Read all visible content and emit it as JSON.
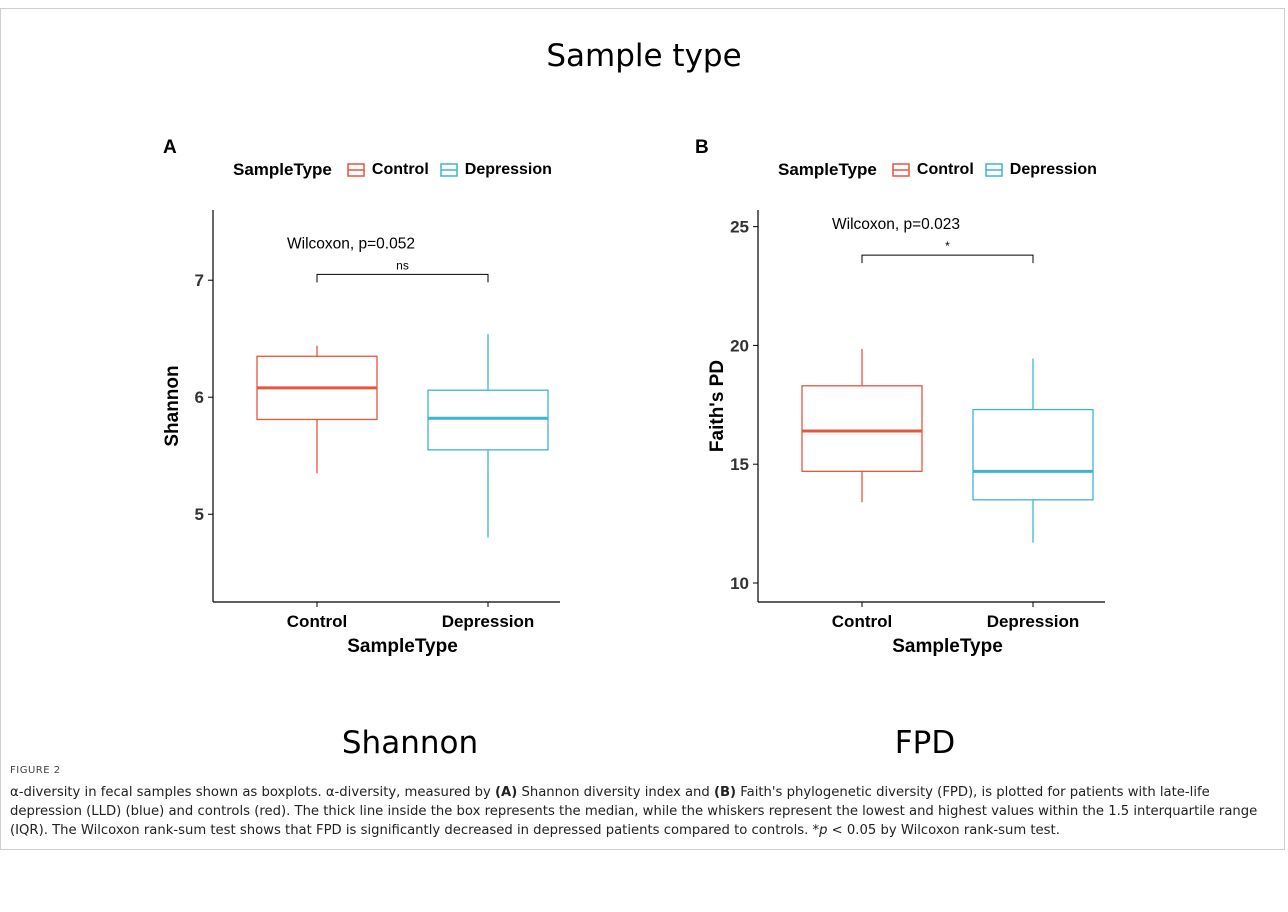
{
  "suptitle": "Sample type",
  "caption": {
    "label": "FIGURE 2",
    "parts": [
      {
        "t": "α-diversity in fecal samples shown as boxplots. α-diversity, measured by ",
        "b": false
      },
      {
        "t": "(A)",
        "b": true
      },
      {
        "t": " Shannon diversity index and ",
        "b": false
      },
      {
        "t": "(B)",
        "b": true
      },
      {
        "t": " Faith's phylogenetic diversity (FPD), is plotted for patients with late-life depression (LLD) (blue) and controls (red). The thick line inside the box represents the median, while the whiskers represent the lowest and highest values within the 1.5 interquartile range (IQR). The Wilcoxon rank-sum test shows that FPD is significantly decreased in depressed patients compared to controls. *",
        "b": false
      },
      {
        "t": "p",
        "i": true
      },
      {
        "t": " < 0.05 by Wilcoxon rank-sum test.",
        "b": false
      }
    ]
  },
  "colors": {
    "control": "#E8553F",
    "depression": "#3DB5CF"
  },
  "chart_data": [
    {
      "type": "box",
      "panel_label": "A",
      "legend_title": "SampleType",
      "legend_position": "top",
      "subtitle": "Shannon",
      "xlabel": "SampleType",
      "ylabel": "Shannon",
      "categories": [
        "Control",
        "Depression"
      ],
      "ylim": [
        4.25,
        7.6
      ],
      "yticks": [
        5,
        6,
        7
      ],
      "boxes": [
        {
          "name": "Control",
          "min": 5.35,
          "q1": 5.81,
          "median": 6.08,
          "q3": 6.35,
          "max": 6.44
        },
        {
          "name": "Depression",
          "min": 4.8,
          "q1": 5.55,
          "median": 5.82,
          "q3": 6.06,
          "max": 6.54
        }
      ],
      "annotation": {
        "test": "Wilcoxon, p=0.052",
        "sig": "ns",
        "bracket_y": 7.05
      }
    },
    {
      "type": "box",
      "panel_label": "B",
      "legend_title": "SampleType",
      "legend_position": "top",
      "subtitle": "FPD",
      "xlabel": "SampleType",
      "ylabel": "Faith's PD",
      "categories": [
        "Control",
        "Depression"
      ],
      "ylim": [
        9.2,
        25.7
      ],
      "yticks": [
        10,
        15,
        20,
        25
      ],
      "boxes": [
        {
          "name": "Control",
          "min": 13.4,
          "q1": 14.7,
          "median": 16.4,
          "q3": 18.3,
          "max": 19.85
        },
        {
          "name": "Depression",
          "min": 11.7,
          "q1": 13.5,
          "median": 14.7,
          "q3": 17.3,
          "max": 19.45
        }
      ],
      "annotation": {
        "test": "Wilcoxon, p=0.023",
        "sig": "*",
        "bracket_y": 23.8
      }
    }
  ]
}
